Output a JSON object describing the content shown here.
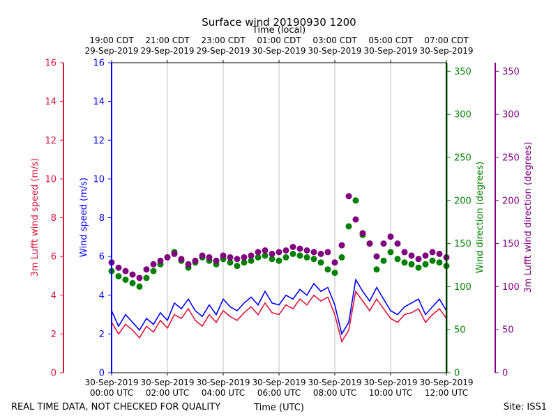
{
  "title": "Surface wind 20190930 1200",
  "top_axis_label": "Time (local)",
  "bottom_axis_label": "Time (UTC)",
  "footer_left": "REAL TIME DATA, NOT CHECKED FOR QUALITY",
  "footer_right": "Site: ISS1",
  "colors": {
    "wind_speed": "#0000ff",
    "lufft_speed": "#dc143c",
    "wind_direction": "#008000",
    "lufft_direction": "#800080",
    "grid": "#b0b0b0"
  },
  "chart_data": {
    "type": "line",
    "title": "Surface wind 20190930 1200",
    "xlabel": "Time (UTC)",
    "xlabel_top": "Time (local)",
    "xlim_hours": [
      0,
      12
    ],
    "bottom_ticks": [
      {
        "hour": 0,
        "line1": "30-Sep-2019",
        "line2": "00:00 UTC"
      },
      {
        "hour": 2,
        "line1": "30-Sep-2019",
        "line2": "02:00 UTC"
      },
      {
        "hour": 4,
        "line1": "30-Sep-2019",
        "line2": "04:00 UTC"
      },
      {
        "hour": 6,
        "line1": "30-Sep-2019",
        "line2": "06:00 UTC"
      },
      {
        "hour": 8,
        "line1": "30-Sep-2019",
        "line2": "08:00 UTC"
      },
      {
        "hour": 10,
        "line1": "30-Sep-2019",
        "line2": "10:00 UTC"
      },
      {
        "hour": 12,
        "line1": "30-Sep-2019",
        "line2": "12:00 UTC"
      }
    ],
    "top_ticks": [
      {
        "hour": 0,
        "line1": "19:00 CDT",
        "line2": "29-Sep-2019"
      },
      {
        "hour": 2,
        "line1": "21:00 CDT",
        "line2": "29-Sep-2019"
      },
      {
        "hour": 4,
        "line1": "23:00 CDT",
        "line2": "29-Sep-2019"
      },
      {
        "hour": 6,
        "line1": "01:00 CDT",
        "line2": "30-Sep-2019"
      },
      {
        "hour": 8,
        "line1": "03:00 CDT",
        "line2": "30-Sep-2019"
      },
      {
        "hour": 10,
        "line1": "05:00 CDT",
        "line2": "30-Sep-2019"
      },
      {
        "hour": 12,
        "line1": "07:00 CDT",
        "line2": "30-Sep-2019"
      }
    ],
    "axes": {
      "lufft_speed": {
        "label": "3m Lufft wind speed (m/s)",
        "ylim": [
          0,
          16
        ],
        "ticks": [
          0,
          2,
          4,
          6,
          8,
          10,
          12,
          14,
          16
        ]
      },
      "wind_speed": {
        "label": "Wind speed (m/s)",
        "ylim": [
          0,
          16
        ],
        "ticks": [
          0,
          2,
          4,
          6,
          8,
          10,
          12,
          14,
          16
        ]
      },
      "wind_direction": {
        "label": "Wind direction (degrees)",
        "ylim": [
          0,
          360
        ],
        "ticks": [
          0,
          50,
          100,
          150,
          200,
          250,
          300,
          350
        ]
      },
      "lufft_direction": {
        "label": "3m Lufft wind direction (degrees)",
        "ylim": [
          0,
          360
        ],
        "ticks": [
          0,
          50,
          100,
          150,
          200,
          250,
          300,
          350
        ]
      }
    },
    "series": [
      {
        "name": "Wind speed (m/s)",
        "kind": "line",
        "axis": "wind_speed",
        "hours": [
          0.0,
          0.25,
          0.5,
          0.75,
          1.0,
          1.25,
          1.5,
          1.75,
          2.0,
          2.25,
          2.5,
          2.75,
          3.0,
          3.25,
          3.5,
          3.75,
          4.0,
          4.25,
          4.5,
          4.75,
          5.0,
          5.25,
          5.5,
          5.75,
          6.0,
          6.25,
          6.5,
          6.75,
          7.0,
          7.25,
          7.5,
          7.75,
          8.0,
          8.25,
          8.5,
          8.75,
          9.0,
          9.25,
          9.5,
          9.75,
          10.0,
          10.25,
          10.5,
          10.75,
          11.0,
          11.25,
          11.5,
          11.75,
          12.0
        ],
        "values": [
          3.2,
          2.4,
          3.0,
          2.6,
          2.2,
          2.8,
          2.5,
          3.1,
          2.7,
          3.6,
          3.3,
          3.8,
          3.2,
          2.9,
          3.5,
          3.0,
          3.8,
          3.4,
          3.2,
          3.6,
          3.9,
          3.5,
          4.2,
          3.6,
          3.5,
          4.0,
          3.8,
          4.3,
          4.0,
          4.6,
          4.2,
          4.4,
          3.5,
          2.0,
          2.6,
          4.8,
          4.2,
          3.7,
          4.4,
          3.8,
          3.2,
          3.0,
          3.4,
          3.6,
          3.8,
          3.0,
          3.4,
          3.8,
          3.2
        ]
      },
      {
        "name": "3m Lufft wind speed (m/s)",
        "kind": "line",
        "axis": "lufft_speed",
        "hours": [
          0.0,
          0.25,
          0.5,
          0.75,
          1.0,
          1.25,
          1.5,
          1.75,
          2.0,
          2.25,
          2.5,
          2.75,
          3.0,
          3.25,
          3.5,
          3.75,
          4.0,
          4.25,
          4.5,
          4.75,
          5.0,
          5.25,
          5.5,
          5.75,
          6.0,
          6.25,
          6.5,
          6.75,
          7.0,
          7.25,
          7.5,
          7.75,
          8.0,
          8.25,
          8.5,
          8.75,
          9.0,
          9.25,
          9.5,
          9.75,
          10.0,
          10.25,
          10.5,
          10.75,
          11.0,
          11.25,
          11.5,
          11.75,
          12.0
        ],
        "values": [
          2.6,
          2.0,
          2.5,
          2.2,
          1.8,
          2.4,
          2.1,
          2.7,
          2.3,
          3.0,
          2.8,
          3.3,
          2.7,
          2.4,
          3.0,
          2.6,
          3.2,
          2.9,
          2.7,
          3.1,
          3.4,
          3.0,
          3.6,
          3.1,
          3.0,
          3.5,
          3.3,
          3.8,
          3.5,
          4.0,
          3.7,
          3.9,
          3.0,
          1.6,
          2.2,
          4.2,
          3.7,
          3.2,
          3.8,
          3.3,
          2.8,
          2.6,
          3.0,
          3.1,
          3.3,
          2.6,
          3.0,
          3.3,
          2.8
        ]
      },
      {
        "name": "Wind direction (degrees)",
        "kind": "scatter",
        "axis": "wind_direction",
        "hours": [
          0.0,
          0.25,
          0.5,
          0.75,
          1.0,
          1.25,
          1.5,
          1.75,
          2.0,
          2.25,
          2.5,
          2.75,
          3.0,
          3.25,
          3.5,
          3.75,
          4.0,
          4.25,
          4.5,
          4.75,
          5.0,
          5.25,
          5.5,
          5.75,
          6.0,
          6.25,
          6.5,
          6.75,
          7.0,
          7.25,
          7.5,
          7.75,
          8.0,
          8.25,
          8.5,
          8.75,
          9.0,
          9.25,
          9.5,
          9.75,
          10.0,
          10.25,
          10.5,
          10.75,
          11.0,
          11.25,
          11.5,
          11.75,
          12.0
        ],
        "values": [
          118,
          112,
          108,
          104,
          100,
          110,
          118,
          126,
          134,
          140,
          130,
          122,
          128,
          134,
          130,
          126,
          132,
          128,
          124,
          128,
          130,
          134,
          136,
          132,
          130,
          134,
          138,
          136,
          134,
          132,
          128,
          120,
          116,
          134,
          170,
          200,
          160,
          150,
          120,
          130,
          140,
          132,
          128,
          126,
          122,
          126,
          130,
          128,
          124
        ]
      },
      {
        "name": "3m Lufft wind direction (degrees)",
        "kind": "scatter",
        "axis": "lufft_direction",
        "hours": [
          0.0,
          0.25,
          0.5,
          0.75,
          1.0,
          1.25,
          1.5,
          1.75,
          2.0,
          2.25,
          2.5,
          2.75,
          3.0,
          3.25,
          3.5,
          3.75,
          4.0,
          4.25,
          4.5,
          4.75,
          5.0,
          5.25,
          5.5,
          5.75,
          6.0,
          6.25,
          6.5,
          6.75,
          7.0,
          7.25,
          7.5,
          7.75,
          8.0,
          8.25,
          8.5,
          8.75,
          9.0,
          9.25,
          9.5,
          9.75,
          10.0,
          10.25,
          10.5,
          10.75,
          11.0,
          11.25,
          11.5,
          11.75,
          12.0
        ],
        "values": [
          128,
          122,
          118,
          114,
          110,
          120,
          126,
          130,
          134,
          138,
          132,
          126,
          130,
          136,
          134,
          130,
          136,
          134,
          132,
          134,
          136,
          140,
          142,
          138,
          140,
          142,
          146,
          144,
          142,
          140,
          138,
          140,
          128,
          148,
          205,
          178,
          162,
          150,
          135,
          150,
          158,
          150,
          140,
          136,
          132,
          136,
          140,
          138,
          134
        ]
      }
    ]
  }
}
